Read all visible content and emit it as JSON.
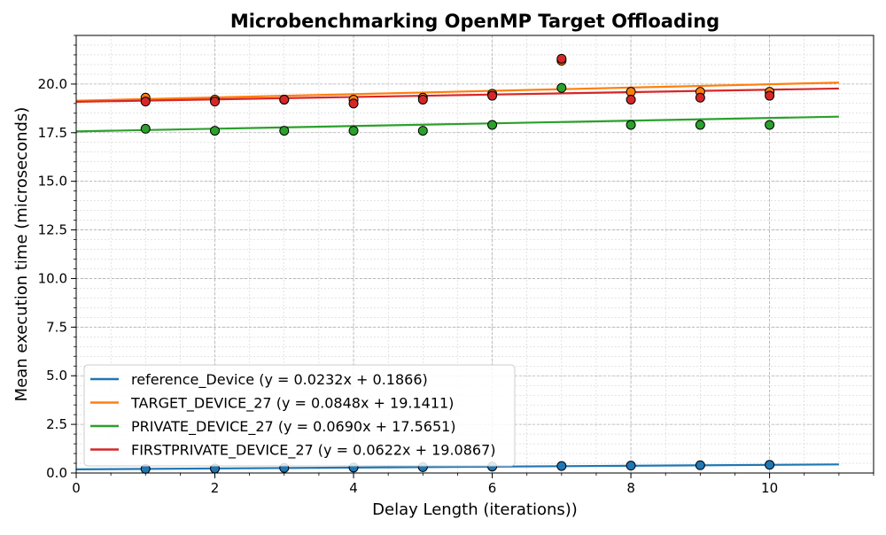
{
  "chart_data": {
    "type": "scatter",
    "title": "Microbenchmarking OpenMP Target Offloading",
    "xlabel": "Delay Length (iterations))",
    "ylabel": "Mean execution time (microseconds)",
    "xlim": [
      0,
      11.5
    ],
    "ylim": [
      0,
      22.5
    ],
    "x_ticks": [
      0,
      2,
      4,
      6,
      8,
      10
    ],
    "x_tick_labels": [
      "0",
      "2",
      "4",
      "6",
      "8",
      "10"
    ],
    "y_ticks": [
      0,
      2.5,
      5,
      7.5,
      10,
      12.5,
      15,
      17.5,
      20
    ],
    "y_tick_labels": [
      "0.0",
      "2.5",
      "5.0",
      "7.5",
      "10.0",
      "12.5",
      "15.0",
      "17.5",
      "20.0"
    ],
    "grid": "on (major and minor, dashed)",
    "legend_position": "lower-left",
    "series": [
      {
        "name": "reference_Device",
        "legend": "reference_Device (y = 0.0232x + 0.1866)",
        "color": "#1f77b4",
        "fit": {
          "slope": 0.0232,
          "intercept": 0.1866,
          "x_range": [
            0,
            11
          ]
        },
        "points": [
          [
            1,
            0.21
          ],
          [
            2,
            0.23
          ],
          [
            3,
            0.26
          ],
          [
            4,
            0.28
          ],
          [
            5,
            0.3
          ],
          [
            6,
            0.33
          ],
          [
            7,
            0.36
          ],
          [
            8,
            0.38
          ],
          [
            9,
            0.4
          ],
          [
            10,
            0.42
          ]
        ]
      },
      {
        "name": "TARGET_DEVICE_27",
        "legend": "TARGET_DEVICE_27 (y = 0.0848x + 19.1411)",
        "color": "#ff7f0e",
        "fit": {
          "slope": 0.0848,
          "intercept": 19.1411,
          "x_range": [
            0,
            11
          ]
        },
        "points": [
          [
            1,
            19.3
          ],
          [
            2,
            19.2
          ],
          [
            3,
            19.2
          ],
          [
            4,
            19.2
          ],
          [
            5,
            19.3
          ],
          [
            6,
            19.5
          ],
          [
            7,
            21.2
          ],
          [
            8,
            19.6
          ],
          [
            9,
            19.6
          ],
          [
            10,
            19.6
          ]
        ]
      },
      {
        "name": "PRIVATE_DEVICE_27",
        "legend": "PRIVATE_DEVICE_27 (y = 0.0690x + 17.5651)",
        "color": "#2ca02c",
        "fit": {
          "slope": 0.069,
          "intercept": 17.5651,
          "x_range": [
            0,
            11
          ]
        },
        "points": [
          [
            1,
            17.7
          ],
          [
            2,
            17.6
          ],
          [
            3,
            17.6
          ],
          [
            4,
            17.6
          ],
          [
            5,
            17.6
          ],
          [
            6,
            17.9
          ],
          [
            7,
            19.8
          ],
          [
            8,
            17.9
          ],
          [
            9,
            17.9
          ],
          [
            10,
            17.9
          ]
        ]
      },
      {
        "name": "FIRSTPRIVATE_DEVICE_27",
        "legend": "FIRSTPRIVATE_DEVICE_27 (y = 0.0622x + 19.0867)",
        "color": "#d62728",
        "fit": {
          "slope": 0.0622,
          "intercept": 19.0867,
          "x_range": [
            0,
            11
          ]
        },
        "points": [
          [
            1,
            19.1
          ],
          [
            2,
            19.1
          ],
          [
            3,
            19.2
          ],
          [
            4,
            19.0
          ],
          [
            5,
            19.2
          ],
          [
            6,
            19.4
          ],
          [
            7,
            21.3
          ],
          [
            8,
            19.2
          ],
          [
            9,
            19.3
          ],
          [
            10,
            19.4
          ]
        ]
      }
    ]
  }
}
